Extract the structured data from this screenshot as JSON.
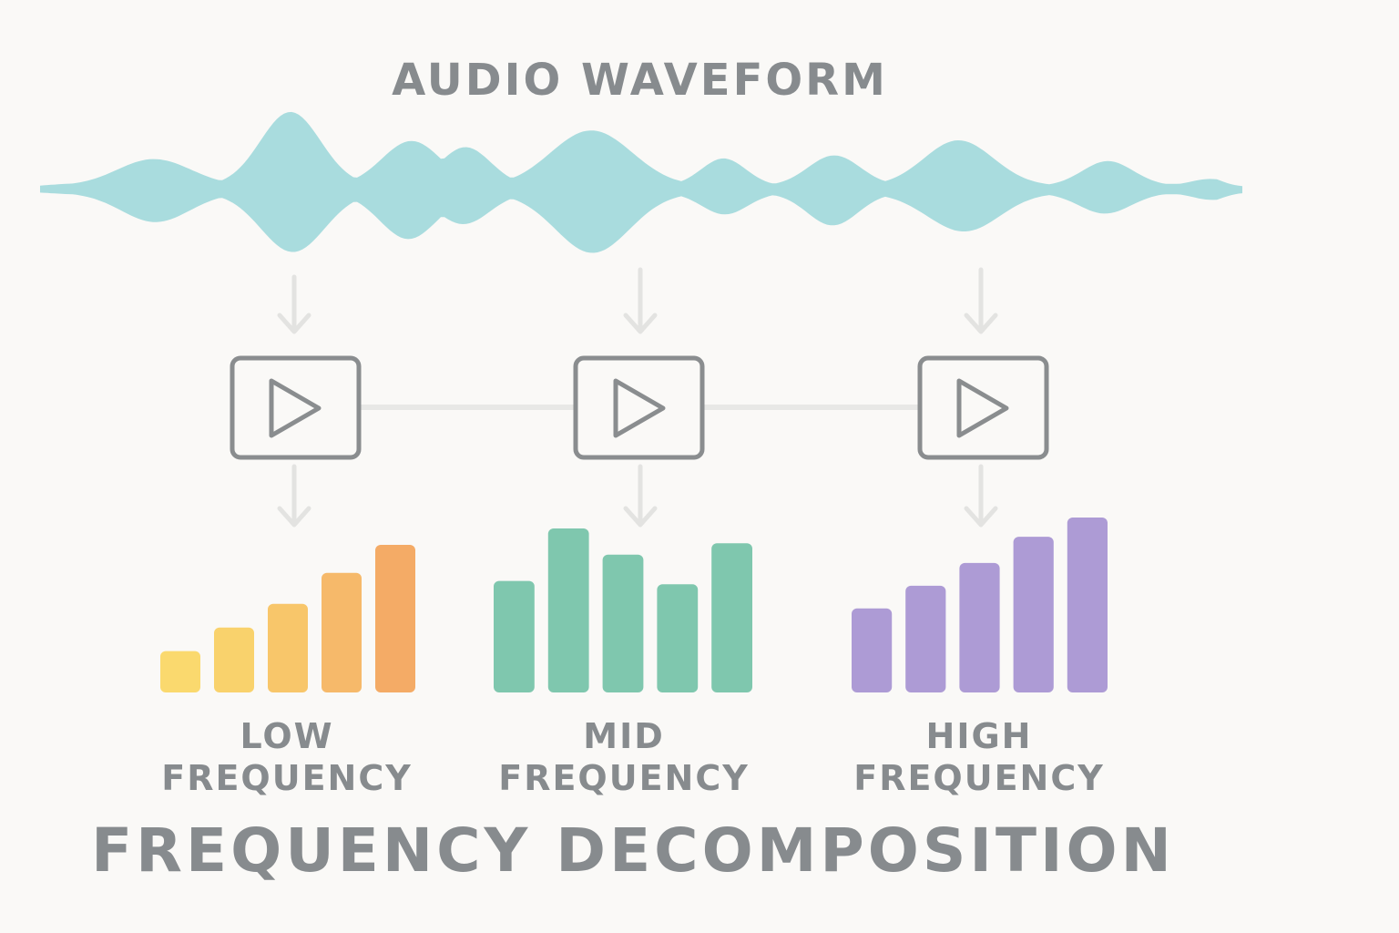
{
  "waveform": {
    "title": "AUDIO WAVEFORM",
    "color": "#a9dcde"
  },
  "filters": [
    {
      "name": "low",
      "icon": "play-icon"
    },
    {
      "name": "mid",
      "icon": "play-icon"
    },
    {
      "name": "high",
      "icon": "play-icon"
    }
  ],
  "bands": [
    {
      "key": "low",
      "label_line1": "LOW",
      "label_line2": "FREQUENCY",
      "levels": [
        0.28,
        0.44,
        0.6,
        0.81,
        1.0
      ],
      "colors": [
        "#fad96e",
        "#f9d26c",
        "#f8c66a",
        "#f6b96a",
        "#f4ab66"
      ]
    },
    {
      "key": "mid",
      "label_line1": "MID",
      "label_line2": "FREQUENCY",
      "levels": [
        0.68,
        1.0,
        0.84,
        0.66,
        0.91
      ],
      "colors": [
        "#7fc7ae",
        "#7fc7ae",
        "#7fc7ae",
        "#7fc7ae",
        "#7fc7ae"
      ]
    },
    {
      "key": "high",
      "label_line1": "HIGH",
      "label_line2": "FREQUENCY",
      "levels": [
        0.48,
        0.61,
        0.74,
        0.89,
        1.0
      ],
      "colors": [
        "#ad9bd5",
        "#ad9bd5",
        "#ad9bd5",
        "#ad9bd5",
        "#ad9bd5"
      ]
    }
  ],
  "title": "FREQUENCY DECOMPOSITION",
  "colors": {
    "text": "#878b8e",
    "box_stroke": "#8a8d8f",
    "arrow": "#e3e3e1",
    "connector": "#e8e8e6"
  }
}
